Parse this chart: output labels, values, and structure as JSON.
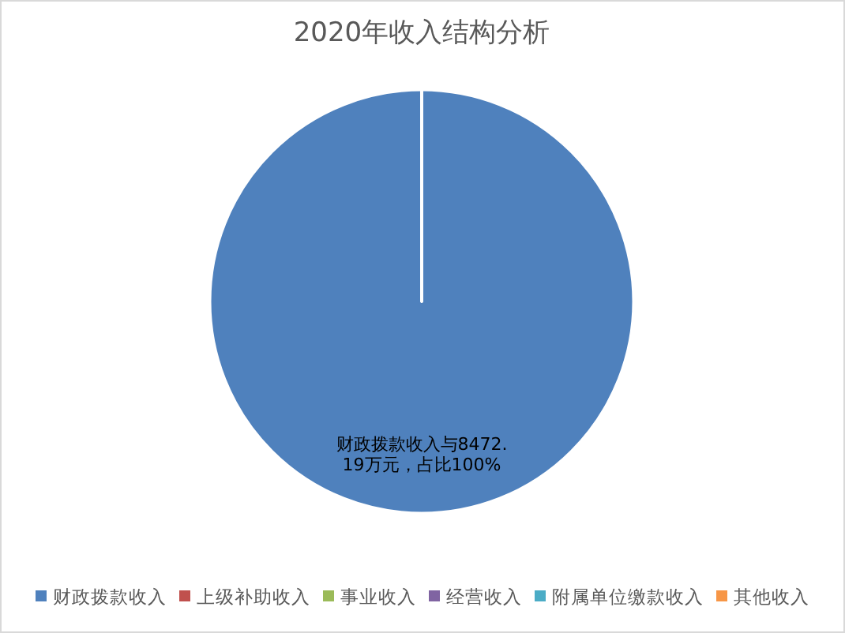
{
  "chart_data": {
    "type": "pie",
    "title": "2020年收入结构分析",
    "categories": [
      "财政拨款收入",
      "上级补助收入",
      "事业收入",
      "经营收入",
      "附属单位缴款收入",
      "其他收入"
    ],
    "values": [
      8472.19,
      0,
      0,
      0,
      0,
      0
    ],
    "colors": [
      "#4f81bd",
      "#c0504d",
      "#9bbb59",
      "#8064a2",
      "#4bacc6",
      "#f79646"
    ],
    "value_labels": [
      "财政拨款收入与8472.19万元，占比100%",
      null,
      null,
      null,
      null,
      null
    ],
    "legend": "bottom"
  }
}
